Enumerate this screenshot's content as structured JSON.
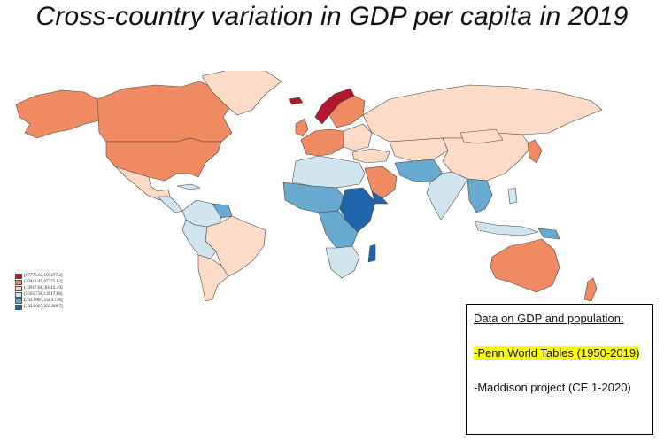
{
  "title": "Cross-country variation in GDP per capita in 2019",
  "colors": {
    "very_high": "#b2182b",
    "high": "#ef8a62",
    "upper_middle": "#fddbc7",
    "lower_middle": "#d1e5f0",
    "low": "#67a9cf",
    "very_low": "#2166ac",
    "border": "#444444"
  },
  "legend": {
    "items": [
      {
        "label": "(67775.62,107477.2]",
        "color": "#b2182b"
      },
      {
        "label": "(30412.49,67775.62]",
        "color": "#ef8a62"
      },
      {
        "label": "(13917.88,30412.49]",
        "color": "#fddbc7"
      },
      {
        "label": "(5503.738,13917.88]",
        "color": "#d1e5f0"
      },
      {
        "label": "(233.9087,5503.738]",
        "color": "#67a9cf"
      },
      {
        "label": "[233.9087,233.9087]",
        "color": "#2166ac"
      }
    ]
  },
  "sources": {
    "heading": "Data on GDP and population:",
    "item1": "-Penn World Tables (1950-2019)",
    "item2": "-Maddison project (CE 1-2020)"
  }
}
